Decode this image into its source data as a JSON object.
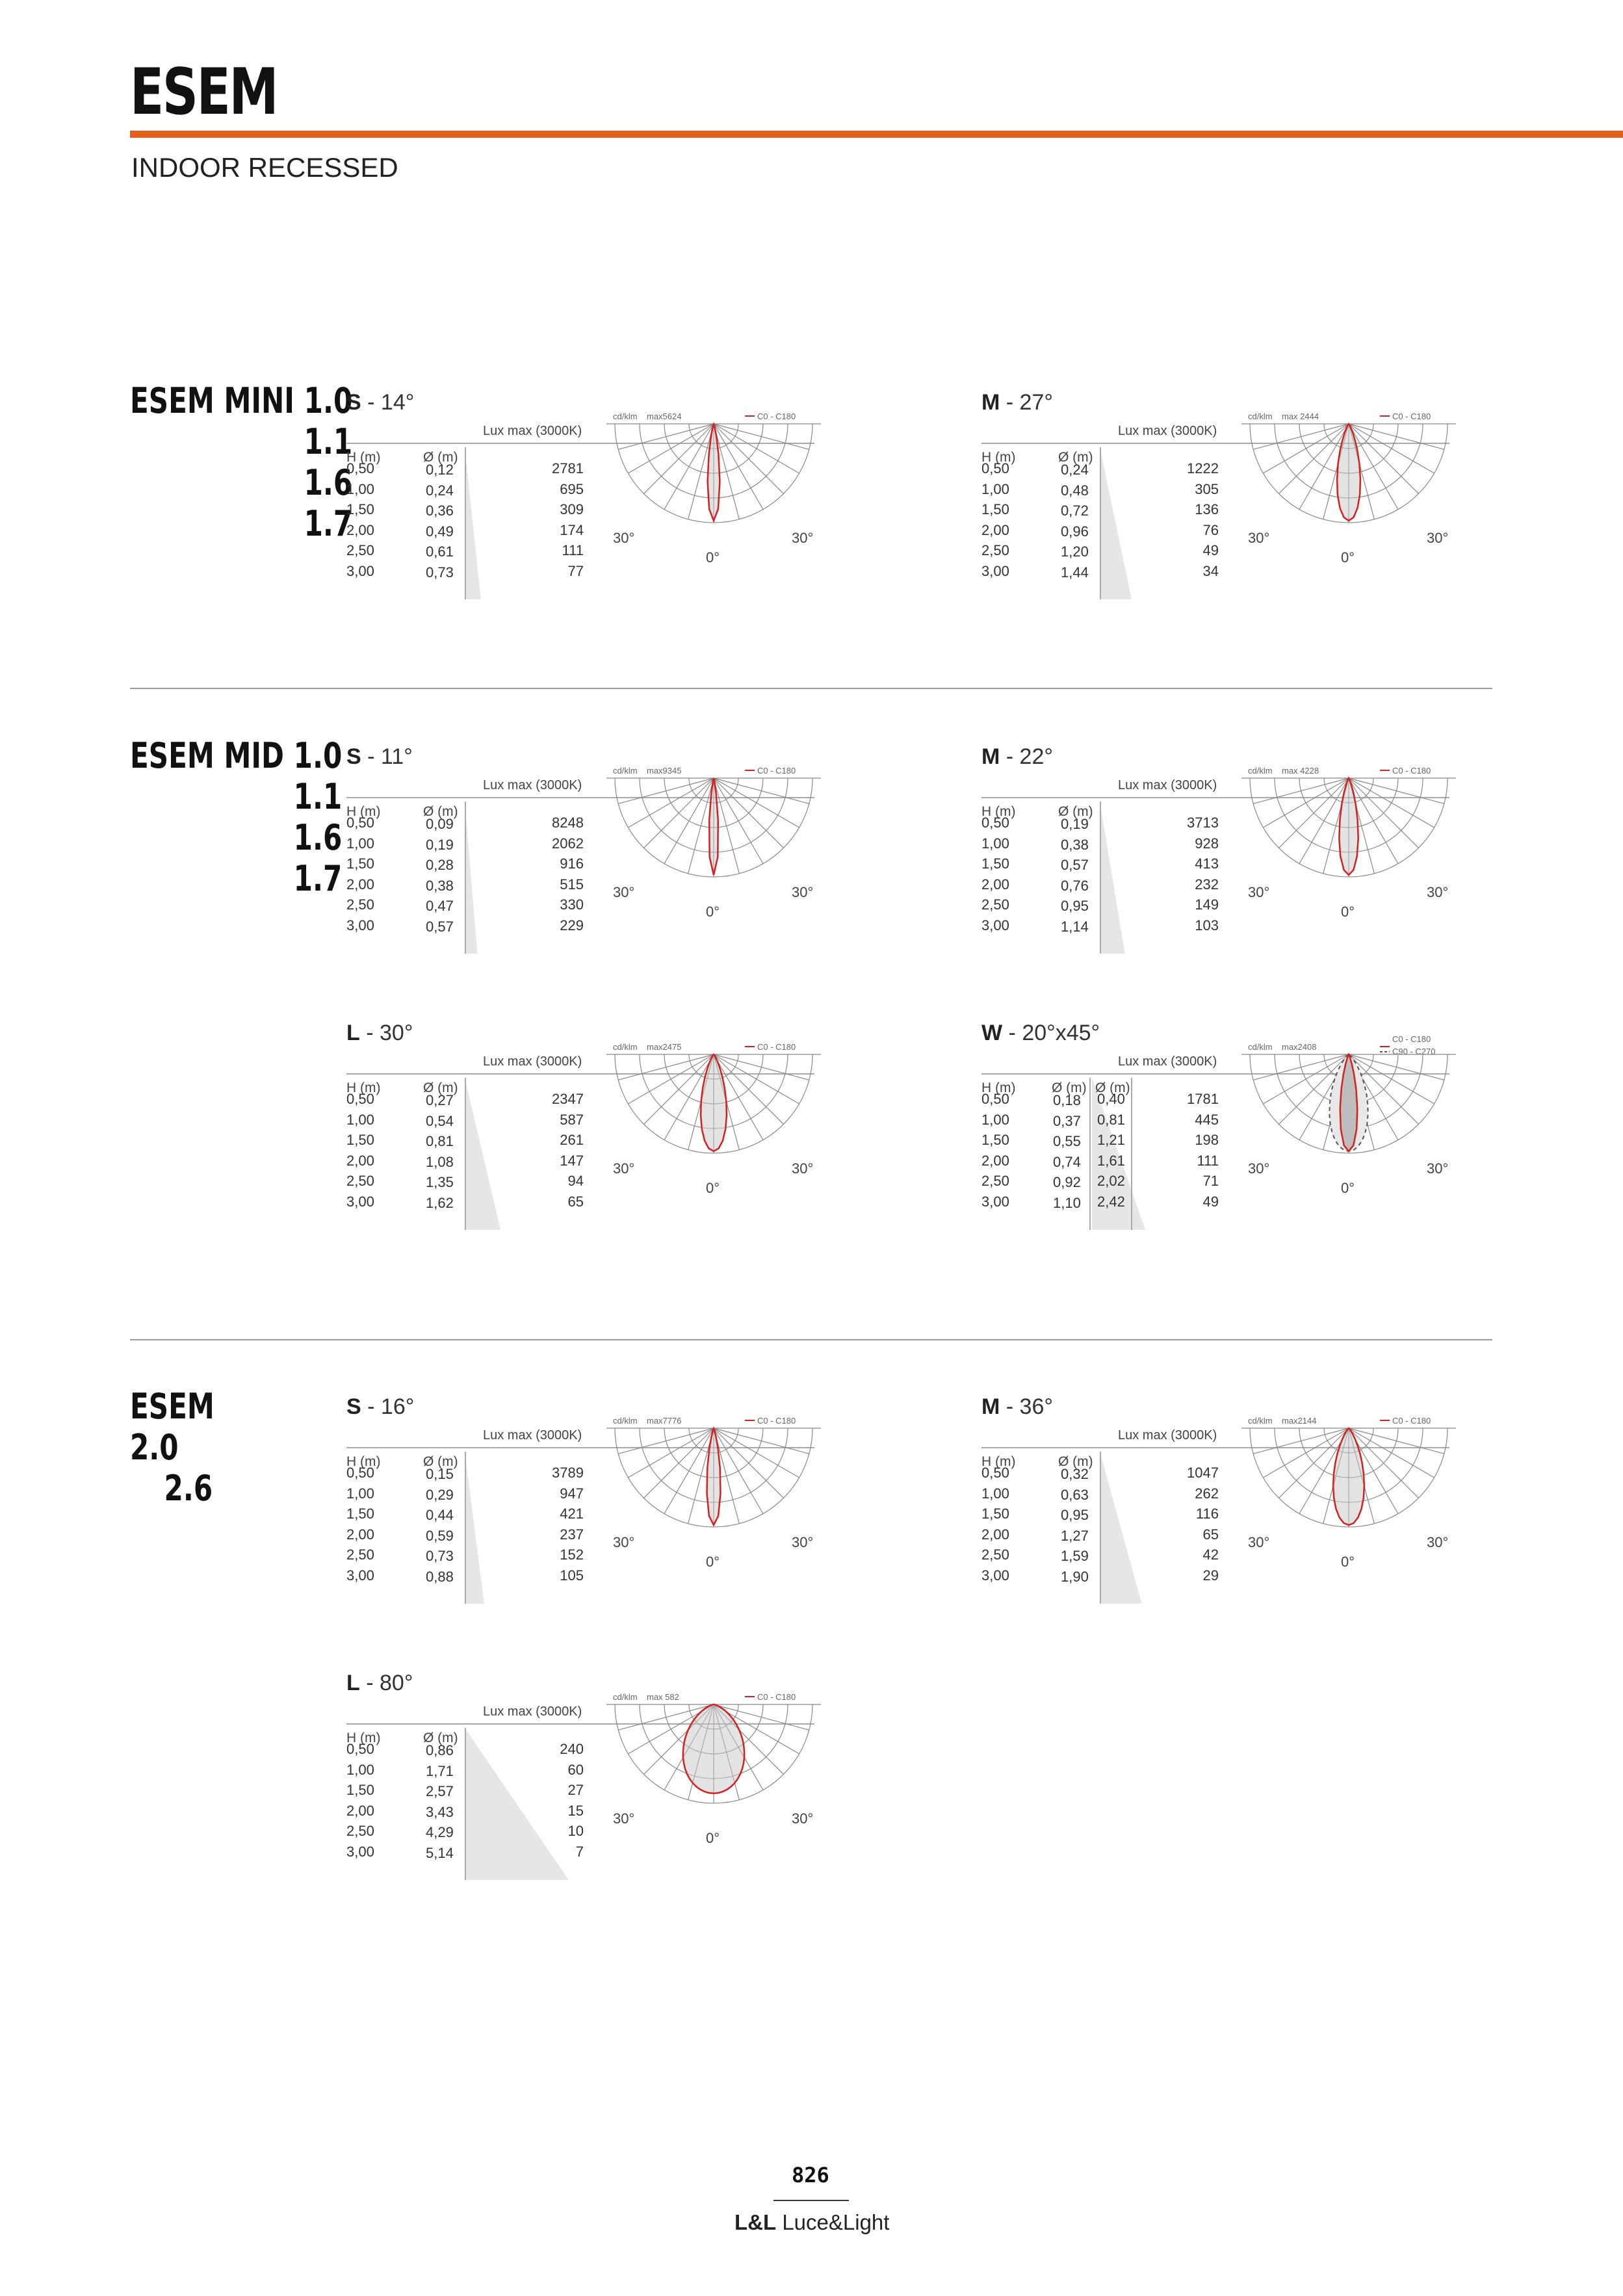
{
  "header": {
    "title": "ESEM",
    "subtitle": "INDOOR RECESSED"
  },
  "labels": {
    "lux_max": "Lux max (3000K)",
    "h": "H (m)",
    "d": "Ø (m)",
    "cdklm": "cd/klm",
    "deg30": "30°",
    "deg0": "0°"
  },
  "accent_color": "#e2611c",
  "curve_color": "#d62020",
  "groups": [
    {
      "label": [
        "ESEM MINI 1.0",
        "1.1",
        "1.6",
        "1.7"
      ],
      "panels": [
        {
          "beam": "S",
          "angle": "14°",
          "max": "max5624",
          "legend1": "C0 - C180",
          "legend2": null,
          "heights": [
            "0,50",
            "1,00",
            "1,50",
            "2,00",
            "2,50",
            "3,00"
          ],
          "d1": [
            "0,12",
            "0,24",
            "0,36",
            "0,49",
            "0,61",
            "0,73"
          ],
          "d2": null,
          "lux": [
            "2781",
            "695",
            "309",
            "174",
            "111",
            "77"
          ],
          "half_angle": 7
        },
        {
          "beam": "M",
          "angle": "27°",
          "max": "max 2444",
          "legend1": "C0 - C180",
          "legend2": null,
          "heights": [
            "0,50",
            "1,00",
            "1,50",
            "2,00",
            "2,50",
            "3,00"
          ],
          "d1": [
            "0,24",
            "0,48",
            "0,72",
            "0,96",
            "1,20",
            "1,44"
          ],
          "d2": null,
          "lux": [
            "1222",
            "305",
            "136",
            "76",
            "49",
            "34"
          ],
          "half_angle": 13.5
        }
      ]
    },
    {
      "label": [
        "ESEM MID 1.0",
        "1.1",
        "1.6",
        "1.7"
      ],
      "panels": [
        {
          "beam": "S",
          "angle": "11°",
          "max": "max9345",
          "legend1": "C0 - C180",
          "legend2": null,
          "heights": [
            "0,50",
            "1,00",
            "1,50",
            "2,00",
            "2,50",
            "3,00"
          ],
          "d1": [
            "0,09",
            "0,19",
            "0,28",
            "0,38",
            "0,47",
            "0,57"
          ],
          "d2": null,
          "lux": [
            "8248",
            "2062",
            "916",
            "515",
            "330",
            "229"
          ],
          "half_angle": 5.5
        },
        {
          "beam": "M",
          "angle": "22°",
          "max": "max 4228",
          "legend1": "C0 - C180",
          "legend2": null,
          "heights": [
            "0,50",
            "1,00",
            "1,50",
            "2,00",
            "2,50",
            "3,00"
          ],
          "d1": [
            "0,19",
            "0,38",
            "0,57",
            "0,76",
            "0,95",
            "1,14"
          ],
          "d2": null,
          "lux": [
            "3713",
            "928",
            "413",
            "232",
            "149",
            "103"
          ],
          "half_angle": 11
        },
        {
          "beam": "L",
          "angle": "30°",
          "max": "max2475",
          "legend1": "C0 - C180",
          "legend2": null,
          "heights": [
            "0,50",
            "1,00",
            "1,50",
            "2,00",
            "2,50",
            "3,00"
          ],
          "d1": [
            "0,27",
            "0,54",
            "0,81",
            "1,08",
            "1,35",
            "1,62"
          ],
          "d2": null,
          "lux": [
            "2347",
            "587",
            "261",
            "147",
            "94",
            "65"
          ],
          "half_angle": 15
        },
        {
          "beam": "W",
          "angle": "20°x45°",
          "max": "max2408",
          "legend1": "C0 - C180",
          "legend2": "C90 - C270",
          "heights": [
            "0,50",
            "1,00",
            "1,50",
            "2,00",
            "2,50",
            "3,00"
          ],
          "d1": [
            "0,18",
            "0,37",
            "0,55",
            "0,74",
            "0,92",
            "1,10"
          ],
          "d2": [
            "0,40",
            "0,81",
            "1,21",
            "1,61",
            "2,02",
            "2,42"
          ],
          "lux": [
            "1781",
            "445",
            "198",
            "111",
            "71",
            "49"
          ],
          "half_angle": 10,
          "half_angle2": 22.5
        }
      ]
    },
    {
      "label": [
        "ESEM 2.0",
        "2.6"
      ],
      "panels": [
        {
          "beam": "S",
          "angle": "16°",
          "max": "max7776",
          "legend1": "C0 - C180",
          "legend2": null,
          "heights": [
            "0,50",
            "1,00",
            "1,50",
            "2,00",
            "2,50",
            "3,00"
          ],
          "d1": [
            "0,15",
            "0,29",
            "0,44",
            "0,59",
            "0,73",
            "0,88"
          ],
          "d2": null,
          "lux": [
            "3789",
            "947",
            "421",
            "237",
            "152",
            "105"
          ],
          "half_angle": 8
        },
        {
          "beam": "M",
          "angle": "36°",
          "max": "max2144",
          "legend1": "C0 - C180",
          "legend2": null,
          "heights": [
            "0,50",
            "1,00",
            "1,50",
            "2,00",
            "2,50",
            "3,00"
          ],
          "d1": [
            "0,32",
            "0,63",
            "0,95",
            "1,27",
            "1,59",
            "1,90"
          ],
          "d2": null,
          "lux": [
            "1047",
            "262",
            "116",
            "65",
            "42",
            "29"
          ],
          "half_angle": 18
        },
        {
          "beam": "L",
          "angle": "80°",
          "max": "max 582",
          "legend1": "C0 - C180",
          "legend2": null,
          "heights": [
            "0,50",
            "1,00",
            "1,50",
            "2,00",
            "2,50",
            "3,00"
          ],
          "d1": [
            "0,86",
            "1,71",
            "2,57",
            "3,43",
            "4,29",
            "5,14"
          ],
          "d2": null,
          "lux": [
            "240",
            "60",
            "27",
            "15",
            "10",
            "7"
          ],
          "half_angle": 40
        }
      ]
    }
  ],
  "footer": {
    "page": "826",
    "brand_bold": "L&L",
    "brand_rest": " Luce&Light"
  }
}
